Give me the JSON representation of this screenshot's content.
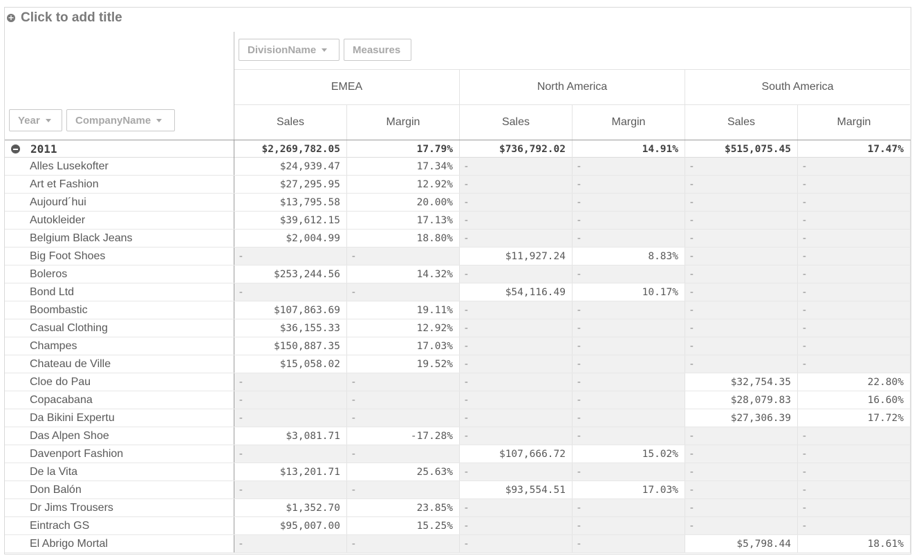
{
  "title": "Click to add title",
  "pills": {
    "year": "Year",
    "company": "CompanyName",
    "division": "DivisionName",
    "measures": "Measures"
  },
  "divisions": [
    "EMEA",
    "North America",
    "South America"
  ],
  "measures": [
    "Sales",
    "Margin",
    "Sales",
    "Margin",
    "Sales",
    "Margin"
  ],
  "total": {
    "label": "2011",
    "values": [
      "$2,269,782.05",
      "17.79%",
      "$736,792.02",
      "14.91%",
      "$515,075.45",
      "17.47%"
    ]
  },
  "empty_mark": "-",
  "rows": [
    {
      "name": "Alles Lusekofter",
      "v": [
        "$24,939.47",
        "17.34%",
        null,
        null,
        null,
        null
      ]
    },
    {
      "name": "Art et Fashion",
      "v": [
        "$27,295.95",
        "12.92%",
        null,
        null,
        null,
        null
      ]
    },
    {
      "name": "Aujourd´hui",
      "v": [
        "$13,795.58",
        "20.00%",
        null,
        null,
        null,
        null
      ]
    },
    {
      "name": "Autokleider",
      "v": [
        "$39,612.15",
        "17.13%",
        null,
        null,
        null,
        null
      ]
    },
    {
      "name": "Belgium Black Jeans",
      "v": [
        "$2,004.99",
        "18.80%",
        null,
        null,
        null,
        null
      ]
    },
    {
      "name": "Big Foot Shoes",
      "v": [
        null,
        null,
        "$11,927.24",
        "8.83%",
        null,
        null
      ]
    },
    {
      "name": "Boleros",
      "v": [
        "$253,244.56",
        "14.32%",
        null,
        null,
        null,
        null
      ]
    },
    {
      "name": "Bond Ltd",
      "v": [
        null,
        null,
        "$54,116.49",
        "10.17%",
        null,
        null
      ]
    },
    {
      "name": "Boombastic",
      "v": [
        "$107,863.69",
        "19.11%",
        null,
        null,
        null,
        null
      ]
    },
    {
      "name": "Casual Clothing",
      "v": [
        "$36,155.33",
        "12.92%",
        null,
        null,
        null,
        null
      ]
    },
    {
      "name": "Champes",
      "v": [
        "$150,887.35",
        "17.03%",
        null,
        null,
        null,
        null
      ]
    },
    {
      "name": "Chateau de Ville",
      "v": [
        "$15,058.02",
        "19.52%",
        null,
        null,
        null,
        null
      ]
    },
    {
      "name": "Cloe do Pau",
      "v": [
        null,
        null,
        null,
        null,
        "$32,754.35",
        "22.80%"
      ]
    },
    {
      "name": "Copacabana",
      "v": [
        null,
        null,
        null,
        null,
        "$28,079.83",
        "16.60%"
      ]
    },
    {
      "name": "Da Bikini Expertu",
      "v": [
        null,
        null,
        null,
        null,
        "$27,306.39",
        "17.72%"
      ]
    },
    {
      "name": "Das Alpen Shoe",
      "v": [
        "$3,081.71",
        "-17.28%",
        null,
        null,
        null,
        null
      ]
    },
    {
      "name": "Davenport Fashion",
      "v": [
        null,
        null,
        "$107,666.72",
        "15.02%",
        null,
        null
      ]
    },
    {
      "name": "De la Vita",
      "v": [
        "$13,201.71",
        "25.63%",
        null,
        null,
        null,
        null
      ]
    },
    {
      "name": "Don Balón",
      "v": [
        null,
        null,
        "$93,554.51",
        "17.03%",
        null,
        null
      ]
    },
    {
      "name": "Dr Jims Trousers",
      "v": [
        "$1,352.70",
        "23.85%",
        null,
        null,
        null,
        null
      ]
    },
    {
      "name": "Eintrach GS",
      "v": [
        "$95,007.00",
        "15.25%",
        null,
        null,
        null,
        null
      ]
    },
    {
      "name": "El Abrigo Mortal",
      "v": [
        null,
        null,
        null,
        null,
        "$5,798.44",
        "18.61%"
      ]
    }
  ]
}
